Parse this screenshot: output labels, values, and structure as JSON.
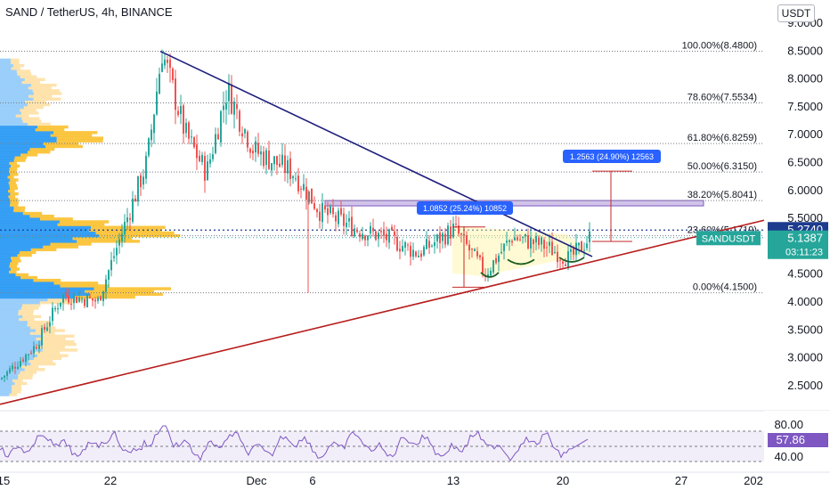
{
  "header": {
    "title": "SAND / TetherUS, 4h, BINANCE",
    "currency": "USDT"
  },
  "colors": {
    "up": "#26a69a",
    "down": "#ef5350",
    "trend_down": "#1e1e7e",
    "trend_up": "#b71c1c",
    "fib": "#787b86",
    "measure": "#c62828",
    "label_bg": "#2962ff",
    "rsi": "#7e57c2",
    "cur_price_bg": "#26a69a",
    "level_bg": "#1e3c8e"
  },
  "chart_data": {
    "type": "candlestick",
    "symbol": "SAND / TetherUS",
    "interval": "4h",
    "exchange": "BINANCE",
    "ylim": [
      2.1,
      9.1
    ],
    "y_ticks": [
      "9.0000",
      "8.5000",
      "8.0000",
      "7.5000",
      "7.0000",
      "6.5000",
      "6.0000",
      "5.5000",
      "4.5000",
      "4.0000",
      "3.5000",
      "3.0000",
      "2.5000"
    ],
    "x_ticks": [
      "15",
      "22",
      "Dec",
      "6",
      "13",
      "20",
      "27",
      "202"
    ],
    "approx_path": [
      {
        "x": "Nov 15",
        "close": 2.6
      },
      {
        "x": "Nov 18",
        "close": 3.2
      },
      {
        "x": "Nov 20",
        "close": 4.1
      },
      {
        "x": "Nov 21",
        "close": 4.0
      },
      {
        "x": "Nov 23",
        "close": 6.5
      },
      {
        "x": "Nov 25",
        "close": 8.48
      },
      {
        "x": "Nov 26",
        "close": 7.0
      },
      {
        "x": "Nov 28",
        "close": 6.3
      },
      {
        "x": "Nov 29",
        "close": 7.8
      },
      {
        "x": "Dec 1",
        "close": 6.7
      },
      {
        "x": "Dec 3",
        "close": 6.3
      },
      {
        "x": "Dec 5",
        "close": 5.6
      },
      {
        "x": "Dec 7",
        "close": 5.3
      },
      {
        "x": "Dec 9",
        "close": 5.1
      },
      {
        "x": "Dec 11",
        "close": 4.85
      },
      {
        "x": "Dec 13",
        "close": 5.3
      },
      {
        "x": "Dec 15",
        "close": 4.5
      },
      {
        "x": "Dec 17",
        "close": 5.15
      },
      {
        "x": "Dec 19",
        "close": 5.0
      },
      {
        "x": "Dec 20",
        "close": 4.75
      },
      {
        "x": "Dec 21",
        "close": 5.14
      }
    ],
    "fib_levels": [
      {
        "label": "100.00%(8.4800)",
        "price": 8.48
      },
      {
        "label": "78.60%(7.5534)",
        "price": 7.5534
      },
      {
        "label": "61.80%(6.8259)",
        "price": 6.8259
      },
      {
        "label": "50.00%(6.3150)",
        "price": 6.315
      },
      {
        "label": "38.20%(5.8041)",
        "price": 5.8041
      },
      {
        "label": "23.60%(5.1719)",
        "price": 5.1719
      },
      {
        "label": "0.00%(4.1500)",
        "price": 4.15
      }
    ],
    "annotations": [
      {
        "text": "1.0852 (25.24%) 10852"
      },
      {
        "text": "1.2563 (24.90%) 12563"
      }
    ],
    "price_labels": {
      "level": "5.2740",
      "current": "5.1387",
      "symbol": "SANDUSDT",
      "countdown": "03:11:23"
    },
    "rsi": {
      "ticks": [
        "80.00",
        "40.00"
      ],
      "value": "57.86"
    }
  }
}
